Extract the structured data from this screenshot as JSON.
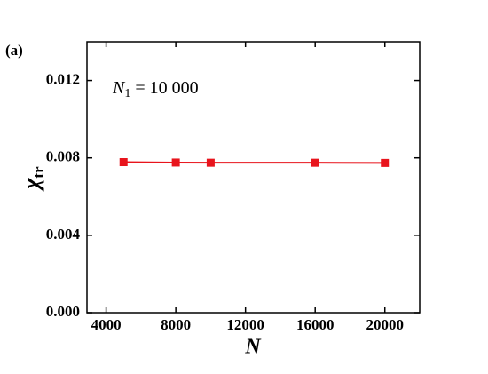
{
  "chart_data": {
    "type": "line",
    "panel_label": "(a)",
    "annotation": {
      "symbol": "N",
      "subscript": "1",
      "text": "= 10 000"
    },
    "x_label": "N",
    "y_label": {
      "symbol": "χ",
      "subscript": "tr"
    },
    "x": [
      5000,
      8000,
      10000,
      16000,
      20000
    ],
    "series": [
      {
        "color": "#e8141c",
        "values": [
          0.00778,
          0.00776,
          0.00775,
          0.00775,
          0.00774
        ]
      }
    ],
    "xlim": [
      2900,
      22000
    ],
    "xticks": [
      4000,
      8000,
      12000,
      16000,
      20000
    ],
    "ylim": [
      0,
      0.014
    ],
    "yticks": [
      {
        "value": 0,
        "label": "0.000"
      },
      {
        "value": 0.004,
        "label": "0.004"
      },
      {
        "value": 0.008,
        "label": "0.008"
      },
      {
        "value": 0.012,
        "label": "0.012"
      }
    ]
  }
}
